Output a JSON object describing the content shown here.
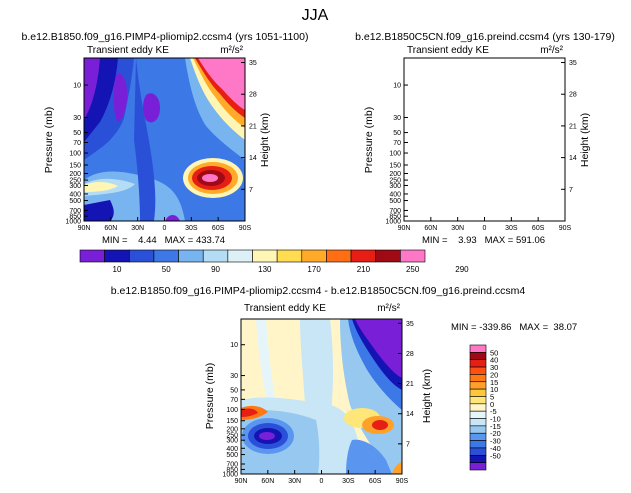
{
  "page_title": "JJA",
  "colors": {
    "positive_scale": [
      "#7a1fd8",
      "#1414b4",
      "#2a50d8",
      "#3c78e6",
      "#78b4f0",
      "#b4dcf5",
      "#dcf0f5",
      "#fff5b4",
      "#ffdc50",
      "#ffaa28",
      "#ff6e14",
      "#e61e14",
      "#a00a14",
      "#ff78c8"
    ],
    "diff_scale": [
      "#7a1fd8",
      "#1414b4",
      "#2a50d8",
      "#3c78e6",
      "#5a96f0",
      "#96c8f0",
      "#c8e6f5",
      "#e6f5fa",
      "#fff5c8",
      "#ffe678",
      "#ffc83c",
      "#ffa028",
      "#ff7814",
      "#ff5014",
      "#e61e14",
      "#a00a14",
      "#ff78c8"
    ]
  },
  "chart_data": [
    {
      "type": "heatmap",
      "title": "b.e12.B1850.f09_g16.PIMP4-pliomip2.ccsm4 (yrs 1051-1100)",
      "variable_label": "Transient eddy KE",
      "units": "m²/s²",
      "xlabel": "",
      "ylabel": "Pressure (mb)",
      "right_label": "Height (km)",
      "x_ticks": [
        "90N",
        "60N",
        "30N",
        "0",
        "30S",
        "60S",
        "90S"
      ],
      "y_ticks": [
        "10",
        "30",
        "50",
        "70",
        "100",
        "150",
        "200",
        "250",
        "300",
        "400",
        "500",
        "700",
        "850",
        "1000"
      ],
      "right_ticks": [
        "35",
        "28",
        "21",
        "14",
        "7"
      ],
      "stats_text": "MIN =    4.44   MAX = 433.74",
      "contour_levels": [
        10,
        50,
        90,
        130,
        170,
        210,
        250,
        290
      ]
    },
    {
      "type": "heatmap",
      "title": "b.e12.B1850C5CN.f09_g16.preind.ccsm4 (yrs 130-179)",
      "variable_label": "Transient eddy KE",
      "units": "m²/s²",
      "xlabel": "",
      "ylabel": "Pressure (mb)",
      "right_label": "Height (km)",
      "x_ticks": [
        "90N",
        "60N",
        "30N",
        "0",
        "30S",
        "60S",
        "90S"
      ],
      "y_ticks": [
        "10",
        "30",
        "50",
        "70",
        "100",
        "150",
        "200",
        "250",
        "300",
        "400",
        "500",
        "700",
        "850",
        "1000"
      ],
      "right_ticks": [
        "35",
        "28",
        "21",
        "14",
        "7"
      ],
      "stats_text": "MIN =    3.93   MAX = 591.06",
      "contour_levels": [
        10,
        50,
        90,
        130,
        170,
        210,
        250,
        290
      ]
    },
    {
      "type": "heatmap",
      "title": "b.e12.B1850.f09_g16.PIMP4-pliomip2.ccsm4 - b.e12.B1850C5CN.f09_g16.preind.ccsm4",
      "variable_label": "Transient eddy KE",
      "units": "m²/s²",
      "xlabel": "",
      "ylabel": "Pressure (mb)",
      "right_label": "Height (km)",
      "x_ticks": [
        "90N",
        "60N",
        "30N",
        "0",
        "30S",
        "60S",
        "90S"
      ],
      "y_ticks": [
        "10",
        "30",
        "50",
        "70",
        "100",
        "150",
        "200",
        "250",
        "300",
        "400",
        "500",
        "700",
        "850",
        "1000"
      ],
      "right_ticks": [
        "35",
        "28",
        "21",
        "14",
        "7"
      ],
      "stats_text": "MIN = -339.86   MAX =  38.07",
      "contour_levels": [
        -50,
        -40,
        -30,
        -20,
        -15,
        -10,
        -5,
        0,
        5,
        10,
        15,
        20,
        30,
        40,
        50
      ]
    }
  ]
}
